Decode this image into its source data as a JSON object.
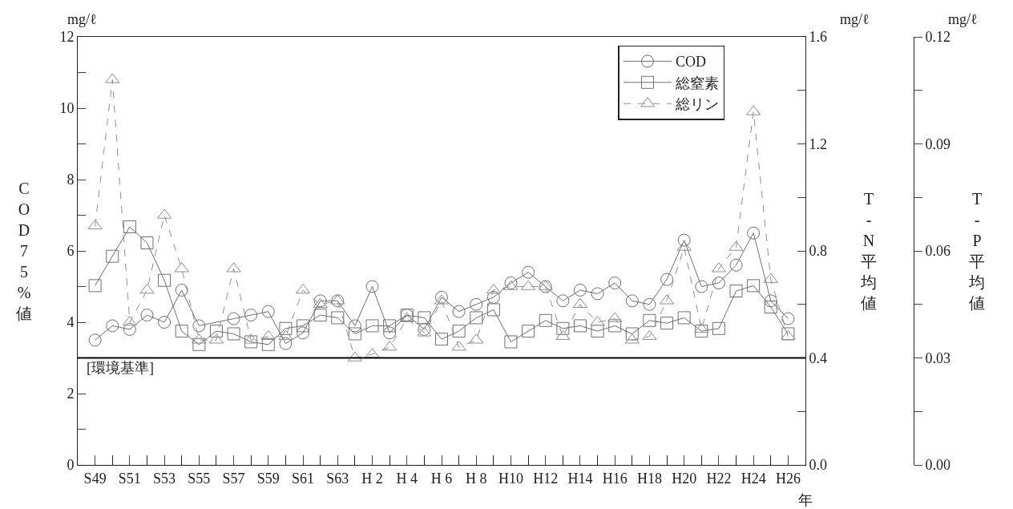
{
  "chart_data": {
    "type": "line",
    "xlabel": "年",
    "ylabel": "COD75%値",
    "y2label": "T-N平均値",
    "y3label": "T-P平均値",
    "categories": [
      "S49",
      null,
      "S51",
      null,
      "S53",
      null,
      "S55",
      null,
      "S57",
      null,
      "S59",
      null,
      "S61",
      null,
      "S63",
      null,
      "H 2",
      null,
      "H 4",
      null,
      "H 6",
      null,
      "H 8",
      null,
      "H10",
      null,
      "H12",
      null,
      "H14",
      null,
      "H16",
      null,
      "H18",
      null,
      "H20",
      null,
      "H22",
      null,
      "H24",
      null,
      "H26"
    ],
    "series": [
      {
        "name": "COD",
        "color": "#707070",
        "marker": "circle",
        "line_style": "solid",
        "values": [
          3.5,
          3.9,
          3.8,
          4.2,
          4.0,
          4.9,
          3.9,
          null,
          4.1,
          4.2,
          4.3,
          3.4,
          3.7,
          4.6,
          4.6,
          3.9,
          5.0,
          3.7,
          4.2,
          3.8,
          4.7,
          4.3,
          4.5,
          4.7,
          5.1,
          5.4,
          5.0,
          4.6,
          4.9,
          4.8,
          5.1,
          4.6,
          4.5,
          5.2,
          6.3,
          5.0,
          5.1,
          5.6,
          6.5,
          4.6,
          4.1
        ]
      },
      {
        "name": "総窒素",
        "color": "#707070",
        "marker": "square",
        "line_style": "solid",
        "axis": "y2",
        "values": [
          0.67,
          0.78,
          0.89,
          0.83,
          0.69,
          0.5,
          0.45,
          0.5,
          0.49,
          0.46,
          0.45,
          0.51,
          0.52,
          0.56,
          0.55,
          0.49,
          0.52,
          0.52,
          0.56,
          0.55,
          0.47,
          0.5,
          0.55,
          0.58,
          0.46,
          0.5,
          0.54,
          0.51,
          0.52,
          0.5,
          0.52,
          0.49,
          0.54,
          0.53,
          0.55,
          0.5,
          0.51,
          0.65,
          0.67,
          0.59,
          0.49
        ]
      },
      {
        "name": "総リン",
        "color": "#909090",
        "marker": "triangle",
        "line_style": "dashed",
        "axis": "y3",
        "values": [
          0.067,
          0.108,
          0.04,
          0.049,
          0.07,
          0.055,
          0.035,
          0.035,
          0.055,
          0.035,
          0.036,
          0.036,
          0.049,
          0.045,
          0.046,
          0.03,
          0.031,
          0.033,
          0.041,
          0.037,
          0.046,
          0.033,
          0.035,
          0.049,
          0.05,
          0.05,
          0.05,
          0.036,
          0.045,
          0.04,
          0.041,
          0.035,
          0.036,
          0.046,
          0.061,
          0.038,
          0.055,
          0.061,
          0.099,
          0.052,
          0.036
        ]
      }
    ],
    "ylim": [
      0,
      12
    ],
    "yticks": [
      0,
      {
        "value": 1,
        "label": null
      },
      2,
      {
        "value": 3,
        "label": null
      },
      4,
      {
        "value": 5,
        "label": null
      },
      6,
      {
        "value": 7,
        "label": null
      },
      8,
      {
        "value": 9,
        "label": null
      },
      10,
      {
        "value": 11,
        "label": null
      },
      12
    ],
    "y2lim": [
      0,
      1.6
    ],
    "y2ticks": [
      "0.0",
      {
        "value": 0.2,
        "label": null
      },
      0.4,
      {
        "value": 0.6,
        "label": null
      },
      0.8,
      {
        "value": 1.0,
        "label": null
      },
      1.2,
      {
        "value": 1.4,
        "label": null
      },
      1.6
    ],
    "y3lim": [
      0,
      0.12
    ],
    "y3ticks": [
      {
        "value": 0,
        "label": "0.00"
      },
      {
        "value": 0.015,
        "label": null
      },
      0.03,
      {
        "value": 0.045,
        "label": null
      },
      0.06,
      {
        "value": 0.075,
        "label": null
      },
      0.09,
      {
        "value": 0.105,
        "label": null
      },
      0.12
    ],
    "ref_lines": [
      {
        "axis": "y",
        "value": 3,
        "label": "[環境基準]",
        "color": "#000000",
        "line_style": "solid"
      }
    ],
    "annotations": [
      "mg/ℓ",
      "mg/ℓ",
      "mg/ℓ"
    ],
    "legend": "top right"
  }
}
